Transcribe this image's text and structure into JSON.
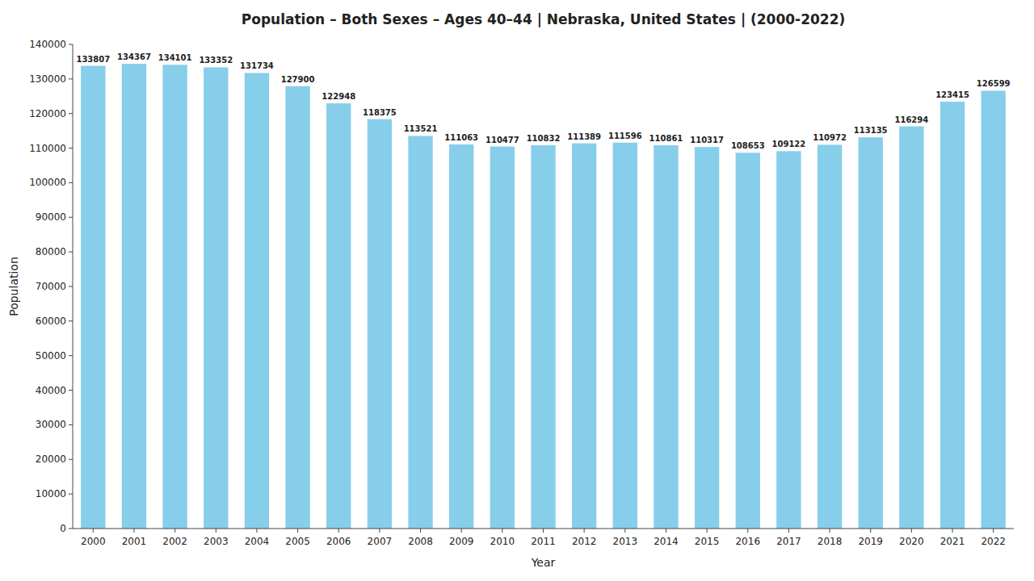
{
  "chart_data": {
    "type": "bar",
    "title": "Population – Both Sexes – Ages 40–44 | Nebraska, United States |   (2000-2022)",
    "x_label": "Year",
    "y_label": "Population",
    "categories": [
      "2000",
      "2001",
      "2002",
      "2003",
      "2004",
      "2005",
      "2006",
      "2007",
      "2008",
      "2009",
      "2010",
      "2011",
      "2012",
      "2013",
      "2014",
      "2015",
      "2016",
      "2017",
      "2018",
      "2019",
      "2020",
      "2021",
      "2022"
    ],
    "values": [
      133807,
      134367,
      134101,
      133352,
      131734,
      127900,
      122948,
      118375,
      113521,
      111063,
      110477,
      110832,
      111389,
      111596,
      110861,
      110317,
      108653,
      109122,
      110972,
      113135,
      116294,
      123415,
      126599
    ],
    "color": "#87CEEB",
    "ylim": [
      0,
      140000
    ],
    "yticks": [
      0,
      10000,
      20000,
      30000,
      40000,
      50000,
      60000,
      70000,
      80000,
      90000,
      100000,
      110000,
      120000,
      130000,
      140000
    ],
    "grid": false,
    "data_labels": true
  }
}
